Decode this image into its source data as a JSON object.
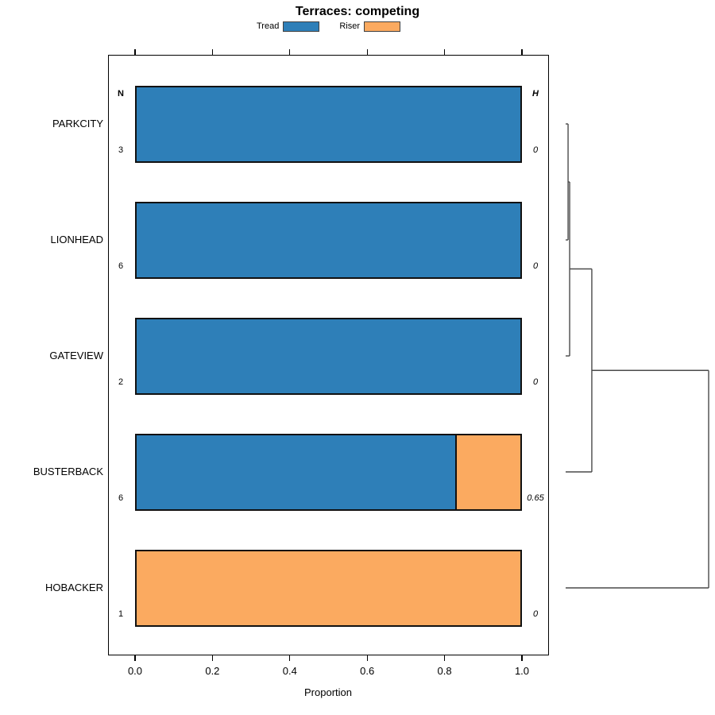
{
  "title": "Terraces: competing",
  "legend": {
    "items": [
      {
        "label": "Tread",
        "color": "#2E7FB8"
      },
      {
        "label": "Riser",
        "color": "#FBAA60"
      }
    ]
  },
  "annotations": {
    "n_header": "N",
    "h_header": "H"
  },
  "chart_data": {
    "type": "bar",
    "orientation": "horizontal",
    "stacked": true,
    "title": "Terraces: competing",
    "xlabel": "Proportion",
    "xlim": [
      0,
      1
    ],
    "x_tick_labels": [
      "0.0",
      "0.2",
      "0.4",
      "0.6",
      "0.8",
      "1.0"
    ],
    "x_tick_values": [
      0.0,
      0.2,
      0.4,
      0.6,
      0.8,
      1.0
    ],
    "grid": false,
    "legend_position": "top",
    "categories": [
      "PARKCITY",
      "LIONHEAD",
      "GATEVIEW",
      "BUSTERBACK",
      "HOBACKER"
    ],
    "series": [
      {
        "name": "Tread",
        "color": "#2E7FB8",
        "values": [
          1.0,
          1.0,
          1.0,
          0.83,
          0.0
        ]
      },
      {
        "name": "Riser",
        "color": "#FBAA60",
        "values": [
          0.0,
          0.0,
          0.0,
          0.17,
          1.0
        ]
      }
    ],
    "n_values": [
      "3",
      "6",
      "2",
      "6",
      "1"
    ],
    "h_values": [
      "0",
      "0",
      "0",
      "0.65",
      "0"
    ],
    "dendrogram": {
      "leaves": [
        "PARKCITY",
        "LIONHEAD",
        "GATEVIEW",
        "BUSTERBACK",
        "HOBACKER"
      ],
      "merges": [
        {
          "a": "PARKCITY",
          "b": "LIONHEAD",
          "height": 0.017
        },
        {
          "a": "#0",
          "b": "GATEVIEW",
          "height": 0.028
        },
        {
          "a": "#1",
          "b": "BUSTERBACK",
          "height": 0.183
        },
        {
          "a": "#2",
          "b": "HOBACKER",
          "height": 1.0
        }
      ]
    }
  }
}
